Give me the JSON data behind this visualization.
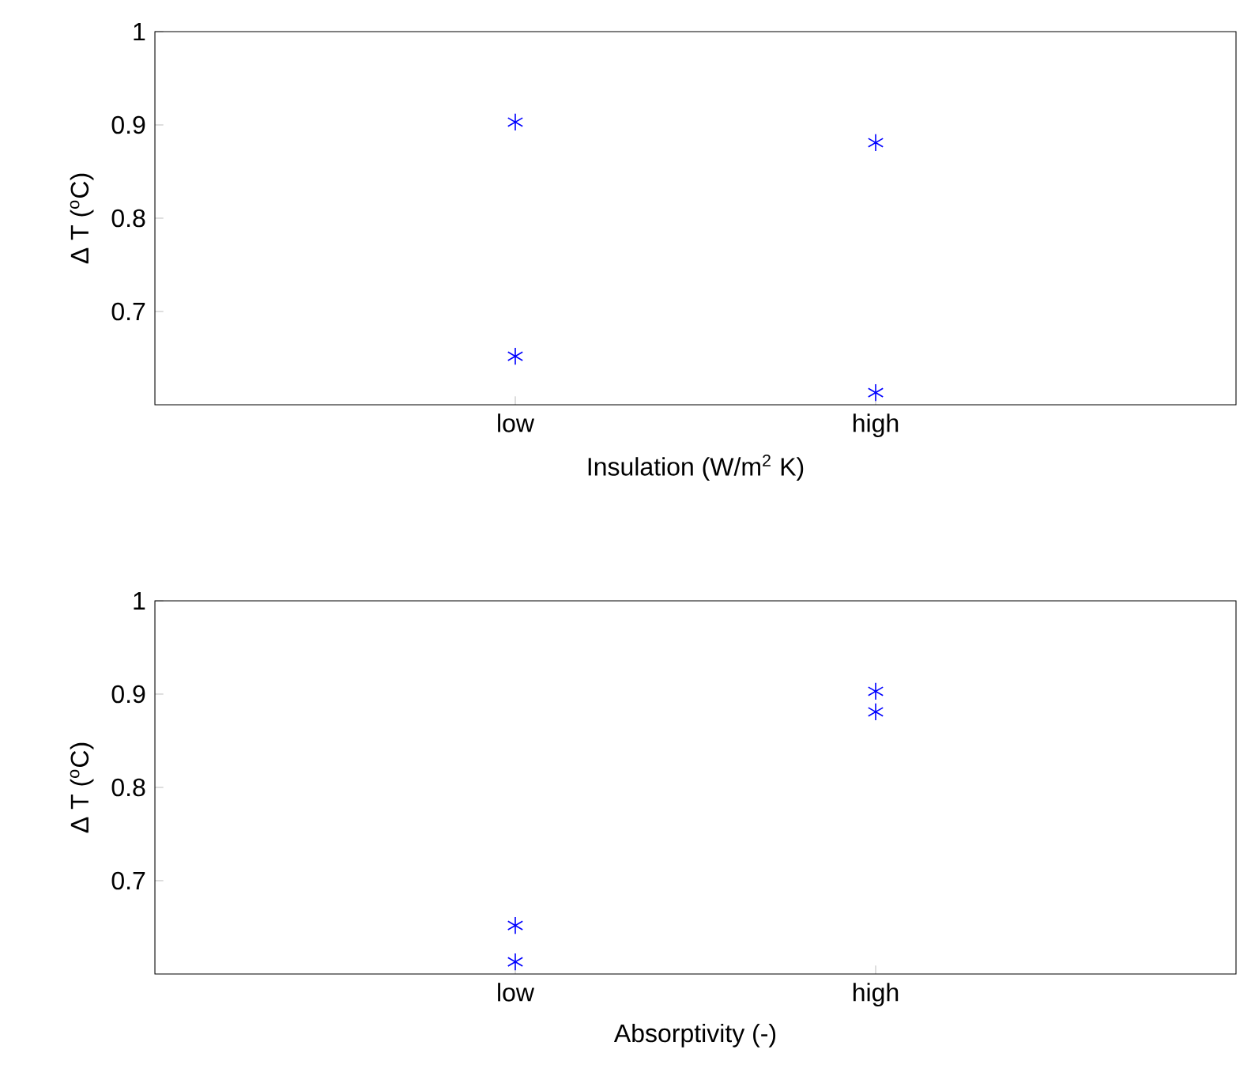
{
  "chart_data": [
    {
      "type": "scatter",
      "categories": [
        "low",
        "high"
      ],
      "xlabel": "Insulation (W/m$^{2}$ K)",
      "ylabel": "Δ T ($^{o}$C)",
      "ylim": [
        0.6,
        1
      ],
      "yticks": [
        0.7,
        0.8,
        0.9,
        1
      ],
      "marker": "cross",
      "grid": false,
      "series": [
        {
          "color": "#0000ff",
          "values": [
            0.903,
            0.881
          ]
        },
        {
          "color": "#0000ff",
          "values": [
            0.652,
            0.613
          ]
        }
      ]
    },
    {
      "type": "scatter",
      "categories": [
        "low",
        "high"
      ],
      "xlabel": "Absorptivity (-)",
      "ylabel": "Δ T ($^{o}$C)",
      "ylim": [
        0.6,
        1
      ],
      "yticks": [
        0.7,
        0.8,
        0.9,
        1
      ],
      "marker": "cross",
      "grid": false,
      "series": [
        {
          "color": "#0000ff",
          "values": [
            0.652,
            0.903
          ]
        },
        {
          "color": "#0000ff",
          "values": [
            0.613,
            0.881
          ]
        }
      ]
    }
  ]
}
